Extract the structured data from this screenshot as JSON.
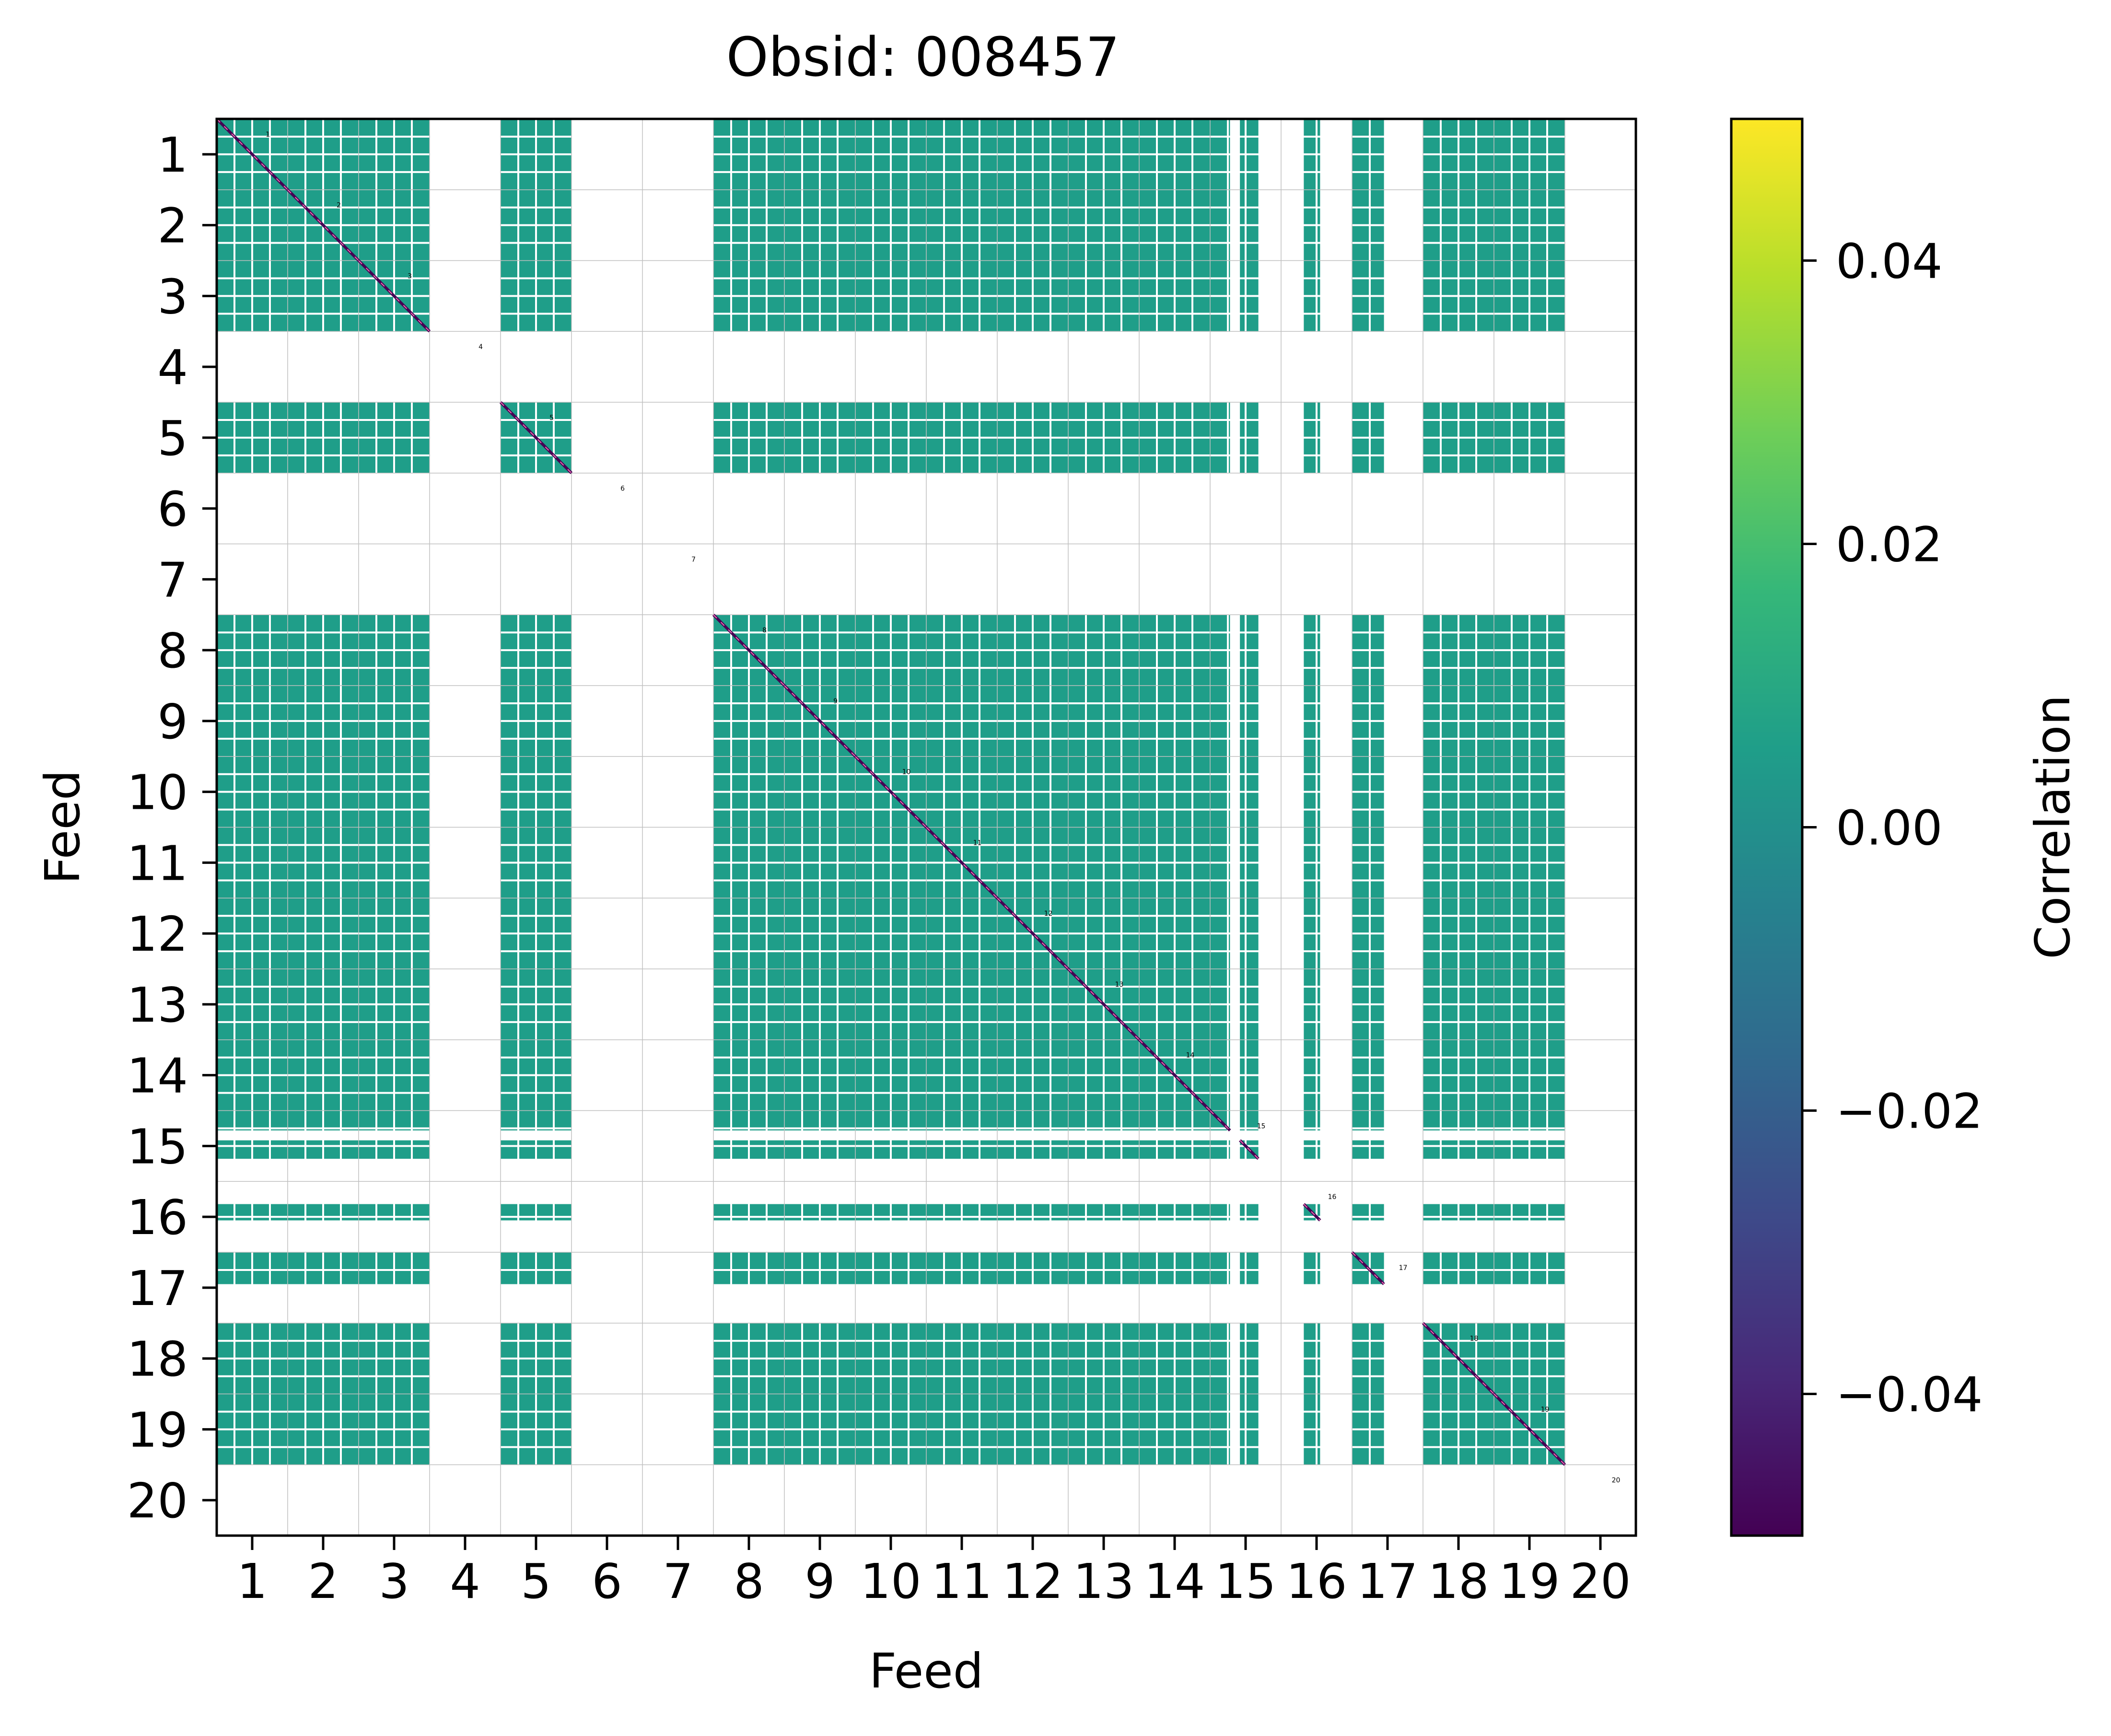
{
  "chart_data": {
    "type": "heatmap",
    "title": "Obsid: 008457",
    "xlabel": "Feed",
    "ylabel": "Feed",
    "feeds": [
      "1",
      "2",
      "3",
      "4",
      "5",
      "6",
      "7",
      "8",
      "9",
      "10",
      "11",
      "12",
      "13",
      "14",
      "15",
      "16",
      "17",
      "18",
      "19",
      "20"
    ],
    "xlim": [
      0.5,
      20.5
    ],
    "ylim": [
      20.5,
      0.5
    ],
    "missing_feeds": [
      4,
      6,
      7,
      20
    ],
    "partial_feeds": [
      {
        "feed": "15",
        "present_fraction": [
          [
            0.0,
            0.28
          ],
          [
            0.42,
            0.68
          ]
        ]
      },
      {
        "feed": "16",
        "present_fraction": [
          [
            0.32,
            0.55
          ]
        ]
      },
      {
        "feed": "17",
        "present_fraction": [
          [
            0.0,
            0.45
          ]
        ]
      }
    ],
    "segments_per_feed": 4,
    "off_diagonal_value": 0.0,
    "diagonal_value": -0.05,
    "missing_value": "NaN",
    "colorbar": {
      "label": "Correlation",
      "vmin": -0.05,
      "vmax": 0.05,
      "ticks": [
        0.04,
        0.02,
        0.0,
        -0.02,
        -0.04
      ],
      "tick_labels": [
        "0.04",
        "0.02",
        "0.00",
        "−0.02",
        "−0.04"
      ],
      "colormap": "viridis"
    },
    "grid": true
  },
  "colors": {
    "cell": "#21908d",
    "diagonal": "#440154",
    "diagonal_hatch": "#f070b0",
    "segment_line": "#ffffff",
    "grid": "#c0c0c0",
    "axis": "#000000",
    "viridis": [
      "#440154",
      "#482878",
      "#3e4989",
      "#31688e",
      "#26828e",
      "#1f9e89",
      "#35b779",
      "#6ece58",
      "#b5de2b",
      "#fde725"
    ]
  }
}
